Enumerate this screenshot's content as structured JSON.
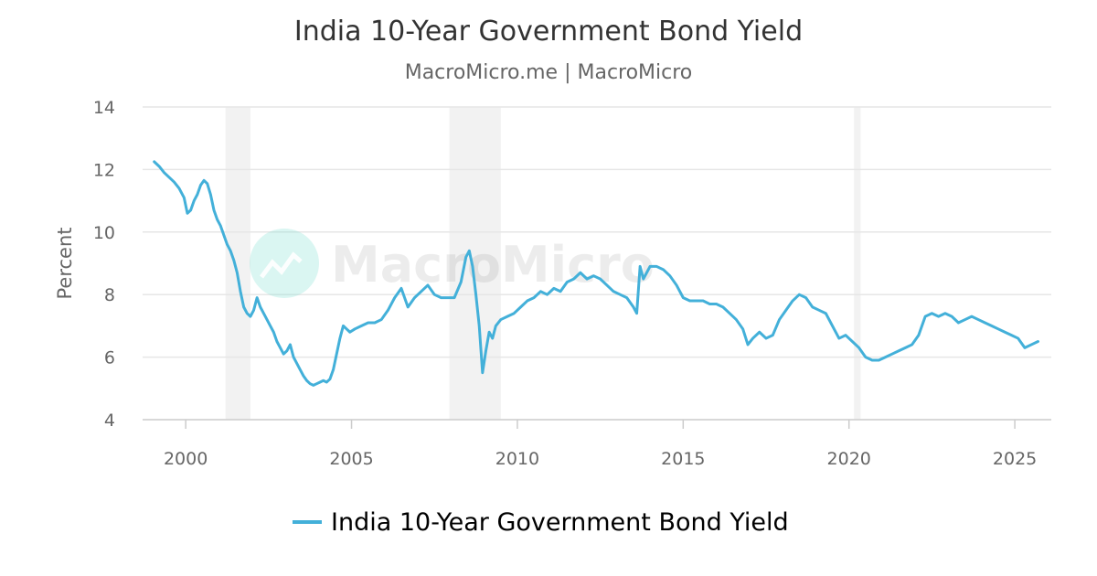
{
  "chart_data": {
    "type": "line",
    "title": "India 10-Year Government Bond Yield",
    "subtitle": "MacroMicro.me | MacroMicro",
    "ylabel": "Percent",
    "xlabel": "",
    "ylim": [
      4,
      14
    ],
    "xlim": [
      1998.7,
      2026.1
    ],
    "y_ticks": [
      4,
      6,
      8,
      10,
      12,
      14
    ],
    "x_ticks": [
      2000,
      2005,
      2010,
      2015,
      2020,
      2025
    ],
    "x_tick_labels": [
      "2000",
      "2005",
      "2010",
      "2015",
      "2020",
      "2025"
    ],
    "y_tick_labels": [
      "4",
      "6",
      "8",
      "10",
      "12",
      "14"
    ],
    "grid": "horizontal",
    "legend_position": "bottom-center",
    "watermark": "MacroMicro",
    "recession_shading": [
      {
        "start": 2001.2,
        "end": 2001.95
      },
      {
        "start": 2007.95,
        "end": 2009.5
      },
      {
        "start": 2020.15,
        "end": 2020.35
      }
    ],
    "series": [
      {
        "name": "India 10-Year Government Bond Yield",
        "color": "#43B0D9",
        "x": [
          1999.05,
          1999.2,
          1999.35,
          1999.5,
          1999.65,
          1999.8,
          1999.95,
          2000.05,
          2000.15,
          2000.25,
          2000.35,
          2000.45,
          2000.55,
          2000.65,
          2000.75,
          2000.85,
          2000.95,
          2001.05,
          2001.15,
          2001.25,
          2001.35,
          2001.45,
          2001.55,
          2001.65,
          2001.75,
          2001.85,
          2001.95,
          2002.05,
          2002.15,
          2002.25,
          2002.35,
          2002.45,
          2002.55,
          2002.65,
          2002.75,
          2002.85,
          2002.95,
          2003.05,
          2003.15,
          2003.25,
          2003.35,
          2003.45,
          2003.55,
          2003.65,
          2003.75,
          2003.85,
          2003.95,
          2004.05,
          2004.15,
          2004.25,
          2004.35,
          2004.45,
          2004.55,
          2004.65,
          2004.75,
          2004.85,
          2004.95,
          2005.1,
          2005.3,
          2005.5,
          2005.7,
          2005.9,
          2006.1,
          2006.3,
          2006.5,
          2006.7,
          2006.9,
          2007.1,
          2007.3,
          2007.5,
          2007.7,
          2007.9,
          2008.1,
          2008.3,
          2008.45,
          2008.55,
          2008.65,
          2008.75,
          2008.85,
          2008.95,
          2009.05,
          2009.15,
          2009.25,
          2009.35,
          2009.5,
          2009.7,
          2009.9,
          2010.1,
          2010.3,
          2010.5,
          2010.7,
          2010.9,
          2011.1,
          2011.3,
          2011.5,
          2011.7,
          2011.9,
          2012.1,
          2012.3,
          2012.5,
          2012.7,
          2012.9,
          2013.1,
          2013.3,
          2013.5,
          2013.6,
          2013.7,
          2013.8,
          2013.9,
          2014.0,
          2014.2,
          2014.4,
          2014.6,
          2014.8,
          2015.0,
          2015.2,
          2015.4,
          2015.6,
          2015.8,
          2016.0,
          2016.2,
          2016.4,
          2016.6,
          2016.8,
          2016.95,
          2017.1,
          2017.3,
          2017.5,
          2017.7,
          2017.9,
          2018.1,
          2018.3,
          2018.5,
          2018.7,
          2018.9,
          2019.1,
          2019.3,
          2019.5,
          2019.7,
          2019.9,
          2020.1,
          2020.3,
          2020.5,
          2020.7,
          2020.9,
          2021.1,
          2021.3,
          2021.5,
          2021.7,
          2021.9,
          2022.1,
          2022.3,
          2022.5,
          2022.7,
          2022.9,
          2023.1,
          2023.3,
          2023.5,
          2023.7,
          2023.9,
          2024.1,
          2024.3,
          2024.5,
          2024.7,
          2024.9,
          2025.1,
          2025.3,
          2025.5,
          2025.7
        ],
        "values": [
          12.25,
          12.1,
          11.9,
          11.75,
          11.6,
          11.4,
          11.1,
          10.6,
          10.7,
          11.0,
          11.2,
          11.5,
          11.65,
          11.55,
          11.2,
          10.7,
          10.4,
          10.2,
          9.9,
          9.6,
          9.4,
          9.1,
          8.7,
          8.1,
          7.6,
          7.4,
          7.3,
          7.5,
          7.9,
          7.6,
          7.4,
          7.2,
          7.0,
          6.8,
          6.5,
          6.3,
          6.1,
          6.2,
          6.4,
          6.0,
          5.8,
          5.6,
          5.4,
          5.25,
          5.15,
          5.1,
          5.15,
          5.2,
          5.25,
          5.2,
          5.3,
          5.6,
          6.1,
          6.6,
          7.0,
          6.9,
          6.8,
          6.9,
          7.0,
          7.1,
          7.1,
          7.2,
          7.5,
          7.9,
          8.2,
          7.6,
          7.9,
          8.1,
          8.3,
          8.0,
          7.9,
          7.9,
          7.9,
          8.4,
          9.2,
          9.4,
          8.9,
          8.0,
          7.0,
          5.5,
          6.2,
          6.8,
          6.6,
          7.0,
          7.2,
          7.3,
          7.4,
          7.6,
          7.8,
          7.9,
          8.1,
          8.0,
          8.2,
          8.1,
          8.4,
          8.5,
          8.7,
          8.5,
          8.6,
          8.5,
          8.3,
          8.1,
          8.0,
          7.9,
          7.6,
          7.4,
          8.9,
          8.5,
          8.7,
          8.9,
          8.9,
          8.8,
          8.6,
          8.3,
          7.9,
          7.8,
          7.8,
          7.8,
          7.7,
          7.7,
          7.6,
          7.4,
          7.2,
          6.9,
          6.4,
          6.6,
          6.8,
          6.6,
          6.7,
          7.2,
          7.5,
          7.8,
          8.0,
          7.9,
          7.6,
          7.5,
          7.4,
          7.0,
          6.6,
          6.7,
          6.5,
          6.3,
          6.0,
          5.9,
          5.9,
          6.0,
          6.1,
          6.2,
          6.3,
          6.4,
          6.7,
          7.3,
          7.4,
          7.3,
          7.4,
          7.3,
          7.1,
          7.2,
          7.3,
          7.2,
          7.1,
          7.0,
          6.9,
          6.8,
          6.7,
          6.6,
          6.3,
          6.4,
          6.5
        ]
      }
    ]
  }
}
